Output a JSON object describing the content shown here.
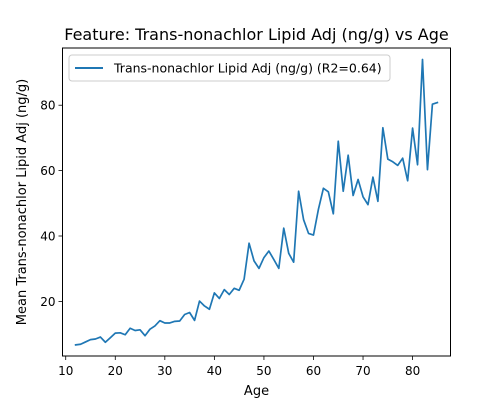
{
  "chart_data": {
    "type": "line",
    "title": "Feature: Trans-nonachlor Lipid Adj (ng/g) vs Age",
    "xlabel": "Age",
    "ylabel": "Mean Trans-nonachlor Lipid Adj (ng/g)",
    "xlim": [
      9.35,
      87.65
    ],
    "ylim": [
      3.3,
      97.5
    ],
    "xticks": [
      10,
      20,
      30,
      40,
      50,
      60,
      70,
      80
    ],
    "yticks": [
      20,
      40,
      60,
      80
    ],
    "grid": false,
    "legend_position": "top-left",
    "series": [
      {
        "name": "Trans-nonachlor Lipid Adj (ng/g) (R2=0.64)",
        "color": "#1f77b4",
        "x": [
          12,
          13,
          14,
          15,
          16,
          17,
          18,
          19,
          20,
          21,
          22,
          23,
          24,
          25,
          26,
          27,
          28,
          29,
          30,
          31,
          32,
          33,
          34,
          35,
          36,
          37,
          38,
          39,
          40,
          41,
          42,
          43,
          44,
          45,
          46,
          47,
          48,
          49,
          50,
          51,
          52,
          53,
          54,
          55,
          56,
          57,
          58,
          59,
          60,
          61,
          62,
          63,
          64,
          65,
          66,
          67,
          68,
          69,
          70,
          71,
          72,
          73,
          74,
          75,
          76,
          77,
          78,
          79,
          80,
          81,
          82,
          83,
          84,
          85
        ],
        "y": [
          6.7,
          6.9,
          7.6,
          8.3,
          8.5,
          9.1,
          7.5,
          8.9,
          10.3,
          10.4,
          9.8,
          11.8,
          11.1,
          11.3,
          9.5,
          11.5,
          12.5,
          14.1,
          13.4,
          13.4,
          13.9,
          14.0,
          16.0,
          16.6,
          14.2,
          20.1,
          18.6,
          17.6,
          22.6,
          20.9,
          23.6,
          22.1,
          24.0,
          23.4,
          26.8,
          37.8,
          32.4,
          30.1,
          33.4,
          35.4,
          32.8,
          30.1,
          42.4,
          34.7,
          32.0,
          53.7,
          45.0,
          40.8,
          40.3,
          48.2,
          54.6,
          53.5,
          46.8,
          69.0,
          53.7,
          64.7,
          52.4,
          57.3,
          52.0,
          49.6,
          58.0,
          50.6,
          73.1,
          63.5,
          62.7,
          61.6,
          63.8,
          56.9,
          73.0,
          61.8,
          94.0,
          60.3,
          80.3,
          80.8
        ]
      }
    ]
  }
}
